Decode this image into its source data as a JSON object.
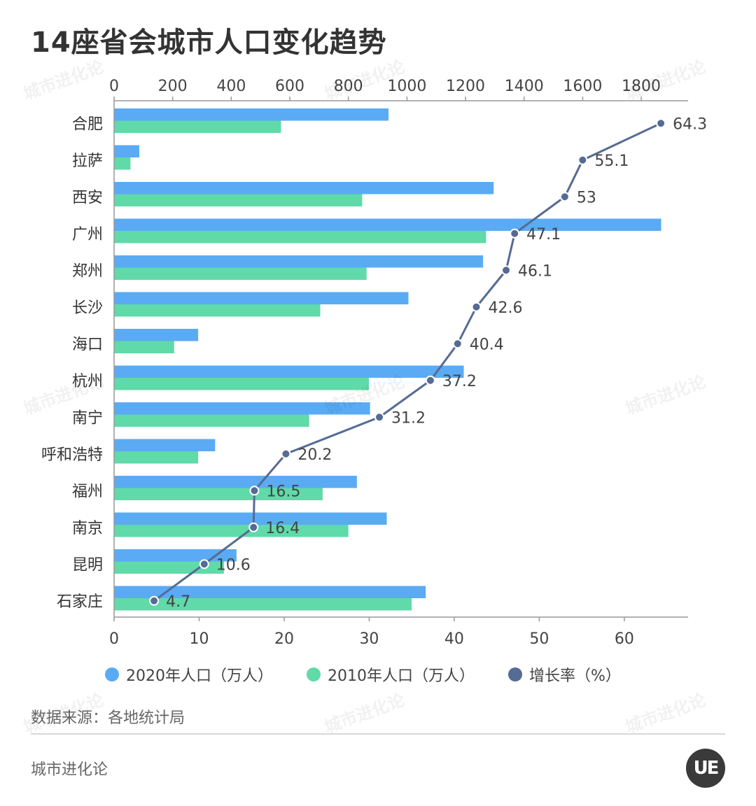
{
  "title": "14座省会城市人口变化趋势",
  "source": "数据来源：各地统计局",
  "brand": "城市进化论",
  "logo_text": "UE",
  "watermark": "城市进化论",
  "legend": [
    {
      "label": "2020年人口（万人）",
      "color": "#5aabf4"
    },
    {
      "label": "2010年人口（万人）",
      "color": "#5fdaa8"
    },
    {
      "label": "增长率（%）",
      "color": "#556b94"
    }
  ],
  "chart_data": {
    "type": "bar",
    "title": "14座省会城市人口变化趋势",
    "categories": [
      "合肥",
      "拉萨",
      "西安",
      "广州",
      "郑州",
      "长沙",
      "海口",
      "杭州",
      "南宁",
      "呼和浩特",
      "福州",
      "南京",
      "昆明",
      "石家庄"
    ],
    "series": [
      {
        "name": "2020年人口（万人）",
        "type": "bar",
        "axis": "top",
        "color": "#5aabf4",
        "values": [
          937,
          86,
          1296,
          1868,
          1260,
          1005,
          287,
          1194,
          874,
          345,
          829,
          931,
          418,
          1064
        ]
      },
      {
        "name": "2010年人口（万人）",
        "type": "bar",
        "axis": "top",
        "color": "#5fdaa8",
        "values": [
          570,
          56,
          847,
          1270,
          862,
          704,
          205,
          870,
          666,
          287,
          712,
          800,
          375,
          1016
        ]
      },
      {
        "name": "增长率（%）",
        "type": "line",
        "axis": "bottom",
        "color": "#556b94",
        "values": [
          64.3,
          55.1,
          53,
          47.1,
          46.1,
          42.6,
          40.4,
          37.2,
          31.2,
          20.2,
          16.5,
          16.4,
          10.6,
          4.7
        ]
      }
    ],
    "top_axis": {
      "range": [
        0,
        1960
      ],
      "ticks": [
        0,
        200,
        400,
        600,
        800,
        1000,
        1200,
        1400,
        1600,
        1800
      ]
    },
    "bottom_axis": {
      "range": [
        0,
        67.5
      ],
      "ticks": [
        0,
        10,
        20,
        30,
        40,
        50,
        60
      ]
    },
    "legend_position": "bottom"
  }
}
